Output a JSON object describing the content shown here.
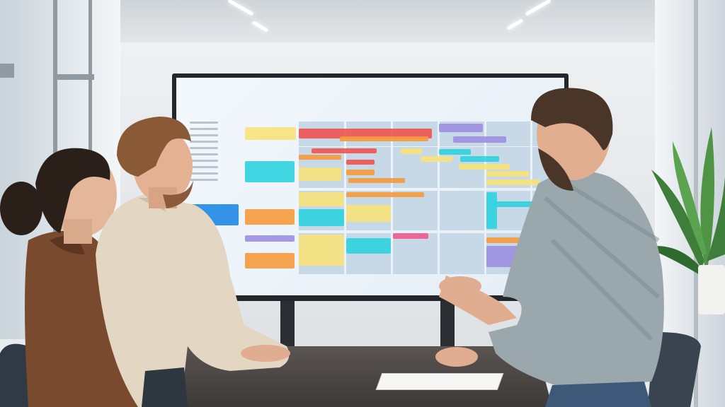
{
  "scene": {
    "description_colors": {
      "wall": "#e9ecef",
      "screen_bezel": "#23272c",
      "grid_cell": "#c7d8e6",
      "red": "#ef5350",
      "orange": "#f59a3c",
      "yellow": "#f7e27a",
      "cyan": "#2fd3e0",
      "purple": "#9c8fe0",
      "blue": "#1e88e5",
      "pink": "#ec5a8e",
      "table": "#4a4542",
      "jacket": "#7a4a2e",
      "beige_shirt": "#e3d6c2",
      "plaid_shirt": "#9aa7ad"
    },
    "icons": [
      "person",
      "monitor",
      "plant",
      "notebook",
      "chair"
    ]
  }
}
